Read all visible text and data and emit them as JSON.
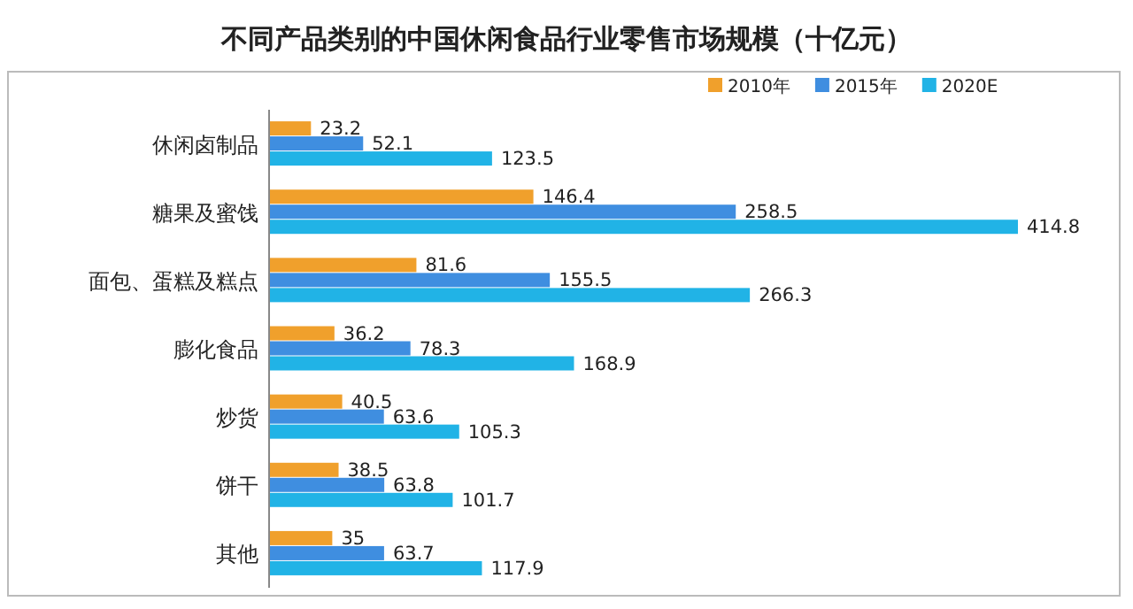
{
  "chart_data": {
    "type": "bar",
    "orientation": "horizontal",
    "title": "不同产品类别的中国休闲食品行业零售市场规模（十亿元）",
    "categories": [
      "休闲卤制品",
      "糖果及蜜饯",
      "面包、蛋糕及糕点",
      "膨化食品",
      "炒货",
      "饼干",
      "其他"
    ],
    "series": [
      {
        "name": "2010年",
        "color": "#f0a02c",
        "values": [
          23.2,
          146.4,
          81.6,
          36.2,
          40.5,
          38.5,
          35
        ]
      },
      {
        "name": "2015年",
        "color": "#3f8ee0",
        "values": [
          52.1,
          258.5,
          155.5,
          78.3,
          63.6,
          63.8,
          63.7
        ]
      },
      {
        "name": "2020E",
        "color": "#21b3e6",
        "values": [
          123.5,
          414.8,
          266.3,
          168.9,
          105.3,
          101.7,
          117.9
        ]
      }
    ],
    "data_labels": true,
    "legend": "top right"
  }
}
